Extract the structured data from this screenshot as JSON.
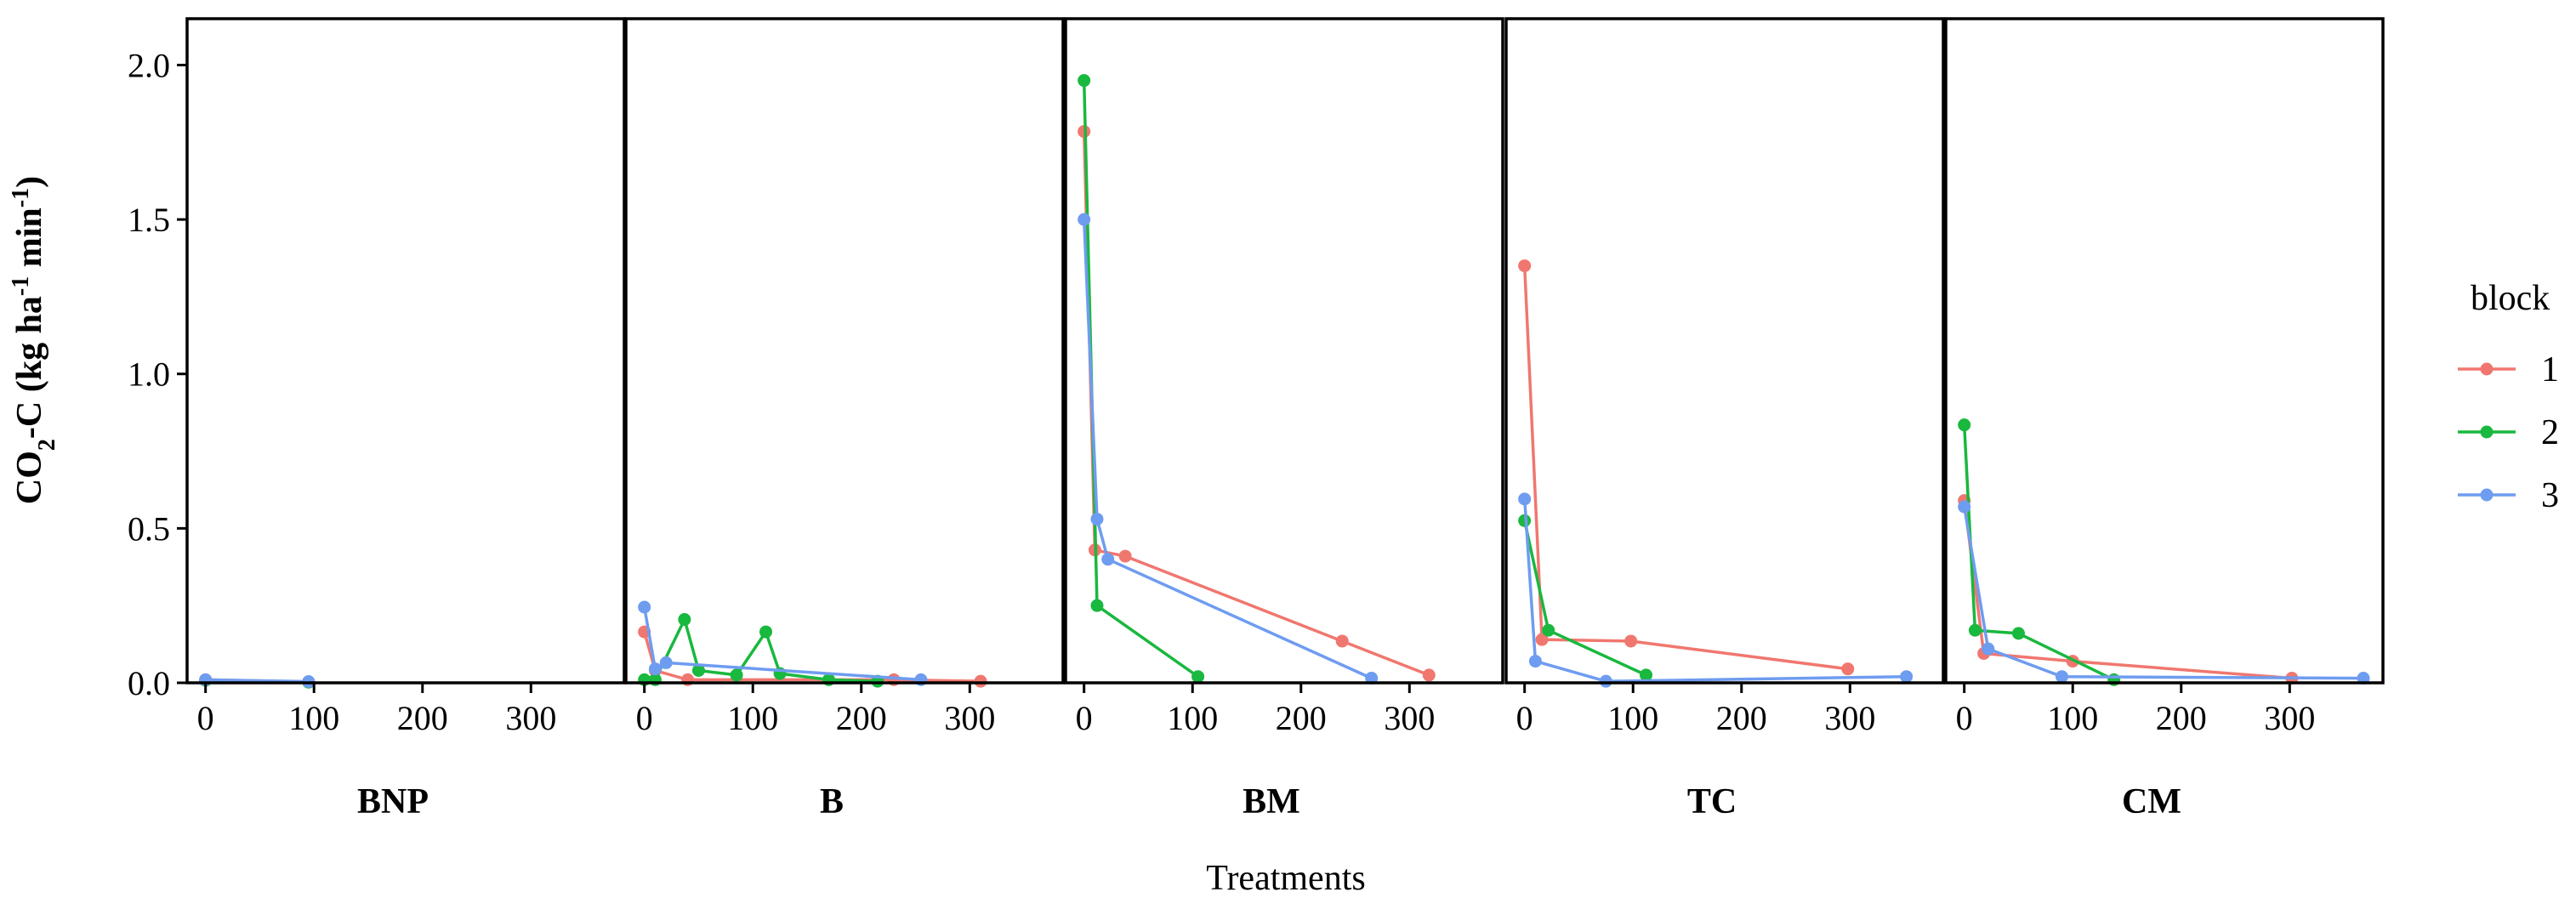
{
  "chart_data": {
    "type": "line",
    "ylabel_parts": {
      "a": "CO",
      "sub": "2",
      "b": "-C (kg ha",
      "sup1": "-1",
      "c": " min",
      "sup2": "-1",
      "d": ")"
    },
    "xlabel": "Treatments",
    "ylim": [
      0,
      2.15
    ],
    "yticks": [
      0.0,
      0.5,
      1.0,
      1.5,
      2.0
    ],
    "ytick_labels": [
      "0.0",
      "0.5",
      "1.0",
      "1.5",
      "2.0"
    ],
    "legend": {
      "title": "block",
      "entries": [
        "1",
        "2",
        "3"
      ],
      "position": "right"
    },
    "colors": {
      "1": "#F0776F",
      "2": "#19B83E",
      "3": "#6E9CF0"
    },
    "panels": [
      {
        "name": "BNP",
        "xlim": [
          -17,
          386
        ],
        "xticks": [
          0,
          100,
          200,
          300
        ],
        "series": [
          {
            "block": "1",
            "x": [
              0,
              95
            ],
            "y": [
              0.01,
              0.003
            ]
          },
          {
            "block": "2",
            "x": [
              0,
              95
            ],
            "y": [
              0.008,
              0.002
            ]
          },
          {
            "block": "3",
            "x": [
              0,
              95
            ],
            "y": [
              0.01,
              0.004
            ]
          }
        ]
      },
      {
        "name": "B",
        "xlim": [
          -17,
          386
        ],
        "xticks": [
          0,
          100,
          200,
          300
        ],
        "series": [
          {
            "block": "1",
            "x": [
              0,
              10,
              40,
              230,
              310
            ],
            "y": [
              0.165,
              0.04,
              0.01,
              0.01,
              0.005
            ]
          },
          {
            "block": "2",
            "x": [
              0,
              10,
              37,
              50,
              85,
              112,
              125,
              170,
              215
            ],
            "y": [
              0.01,
              0.01,
              0.205,
              0.04,
              0.025,
              0.165,
              0.03,
              0.01,
              0.005
            ]
          },
          {
            "block": "3",
            "x": [
              0,
              10,
              20,
              255
            ],
            "y": [
              0.245,
              0.045,
              0.065,
              0.01
            ]
          }
        ]
      },
      {
        "name": "BM",
        "xlim": [
          -17,
          386
        ],
        "xticks": [
          0,
          100,
          200,
          300
        ],
        "series": [
          {
            "block": "1",
            "x": [
              0,
              10,
              38,
              238,
              318
            ],
            "y": [
              1.785,
              0.43,
              0.41,
              0.135,
              0.025
            ]
          },
          {
            "block": "2",
            "x": [
              0,
              12,
              105
            ],
            "y": [
              1.95,
              0.25,
              0.02
            ]
          },
          {
            "block": "3",
            "x": [
              0,
              12,
              22,
              265
            ],
            "y": [
              1.5,
              0.53,
              0.4,
              0.015
            ]
          }
        ]
      },
      {
        "name": "TC",
        "xlim": [
          -17,
          386
        ],
        "xticks": [
          0,
          100,
          200,
          300
        ],
        "series": [
          {
            "block": "1",
            "x": [
              0,
              16,
              98,
              298
            ],
            "y": [
              1.35,
              0.14,
              0.135,
              0.045
            ]
          },
          {
            "block": "2",
            "x": [
              0,
              22,
              112
            ],
            "y": [
              0.525,
              0.17,
              0.025
            ]
          },
          {
            "block": "3",
            "x": [
              0,
              10,
              75,
              352
            ],
            "y": [
              0.595,
              0.07,
              0.005,
              0.02
            ]
          }
        ]
      },
      {
        "name": "CM",
        "xlim": [
          -17,
          386
        ],
        "xticks": [
          0,
          100,
          200,
          300
        ],
        "series": [
          {
            "block": "1",
            "x": [
              0,
              18,
              100,
              302
            ],
            "y": [
              0.59,
              0.095,
              0.07,
              0.015
            ]
          },
          {
            "block": "2",
            "x": [
              0,
              10,
              50,
              138
            ],
            "y": [
              0.835,
              0.17,
              0.16,
              0.01
            ]
          },
          {
            "block": "3",
            "x": [
              0,
              22,
              90,
              368
            ],
            "y": [
              0.57,
              0.11,
              0.02,
              0.015
            ]
          }
        ]
      }
    ]
  }
}
